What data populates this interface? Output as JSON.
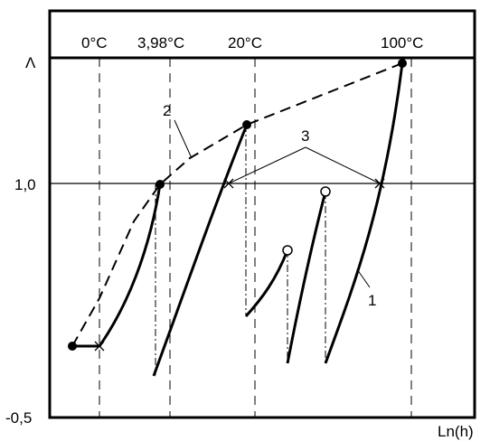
{
  "axis": {
    "y_label": "Λ",
    "x_label": "Ln(h)",
    "y_ticks": [
      "1,0",
      "-0,5"
    ]
  },
  "temperatures": [
    "0°C",
    "3,98°C",
    "20°C",
    "100°C"
  ],
  "callouts": [
    "1",
    "2",
    "3"
  ],
  "colors": {
    "ink": "#000000",
    "background": "#ffffff"
  }
}
